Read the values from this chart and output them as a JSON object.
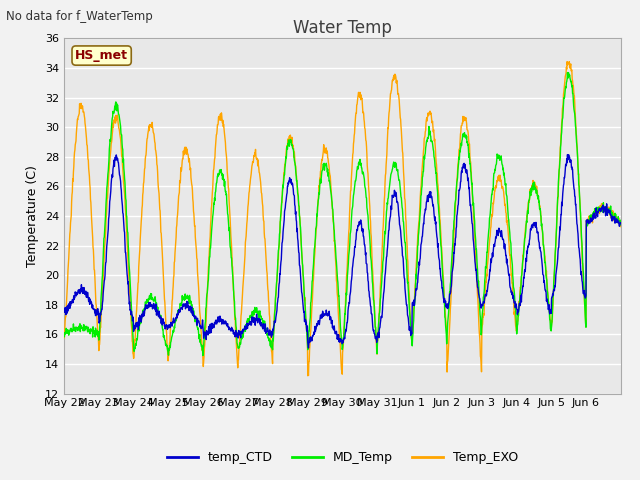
{
  "title": "Water Temp",
  "ylabel": "Temperature (C)",
  "top_left_text": "No data for f_WaterTemp",
  "annotation_text": "HS_met",
  "annotation_color": "#8B0000",
  "annotation_bg": "#FFFFCC",
  "annotation_border": "#8B6914",
  "ylim": [
    12,
    36
  ],
  "yticks": [
    12,
    14,
    16,
    18,
    20,
    22,
    24,
    26,
    28,
    30,
    32,
    34,
    36
  ],
  "xtick_labels": [
    "May 22",
    "May 23",
    "May 24",
    "May 25",
    "May 26",
    "May 27",
    "May 28",
    "May 29",
    "May 30",
    "May 31",
    "Jun 1",
    "Jun 2",
    "Jun 3",
    "Jun 4",
    "Jun 5",
    "Jun 6"
  ],
  "line_colors": {
    "temp_CTD": "#0000CC",
    "MD_Temp": "#00EE00",
    "Temp_EXO": "#FFA500"
  },
  "plot_bg_color": "#E8E8E8",
  "fig_bg_color": "#F2F2F2",
  "grid_color": "#FFFFFF",
  "title_fontsize": 12,
  "label_fontsize": 9,
  "tick_fontsize": 8,
  "exo_peaks": [
    31.5,
    30.7,
    30.2,
    28.5,
    30.8,
    28.1,
    29.3,
    28.5,
    32.2,
    33.5,
    31.0,
    30.7,
    26.5,
    26.2,
    34.5,
    24.5
  ],
  "exo_mins": [
    15.5,
    14.8,
    14.5,
    14.5,
    13.8,
    14.2,
    15.8,
    13.1,
    14.7,
    15.5,
    16.2,
    13.7,
    16.3,
    16.5,
    16.5,
    23.5
  ],
  "ctd_peaks": [
    19.0,
    28.0,
    18.0,
    18.0,
    17.0,
    17.0,
    26.5,
    17.5,
    23.5,
    25.5,
    25.5,
    27.5,
    23.0,
    23.5,
    28.0,
    24.5
  ],
  "ctd_mins": [
    17.5,
    17.0,
    16.5,
    16.5,
    16.0,
    16.0,
    16.5,
    15.5,
    15.5,
    16.0,
    18.0,
    18.0,
    18.0,
    17.5,
    18.5,
    23.5
  ],
  "md_peaks": [
    16.5,
    31.5,
    18.5,
    18.5,
    27.0,
    17.5,
    29.0,
    27.5,
    27.5,
    27.5,
    29.5,
    29.5,
    28.0,
    26.0,
    33.5,
    24.5
  ],
  "md_mins": [
    16.0,
    15.5,
    14.8,
    14.8,
    15.0,
    15.0,
    15.5,
    15.0,
    15.0,
    15.5,
    15.5,
    16.0,
    17.0,
    16.0,
    16.5,
    23.5
  ]
}
